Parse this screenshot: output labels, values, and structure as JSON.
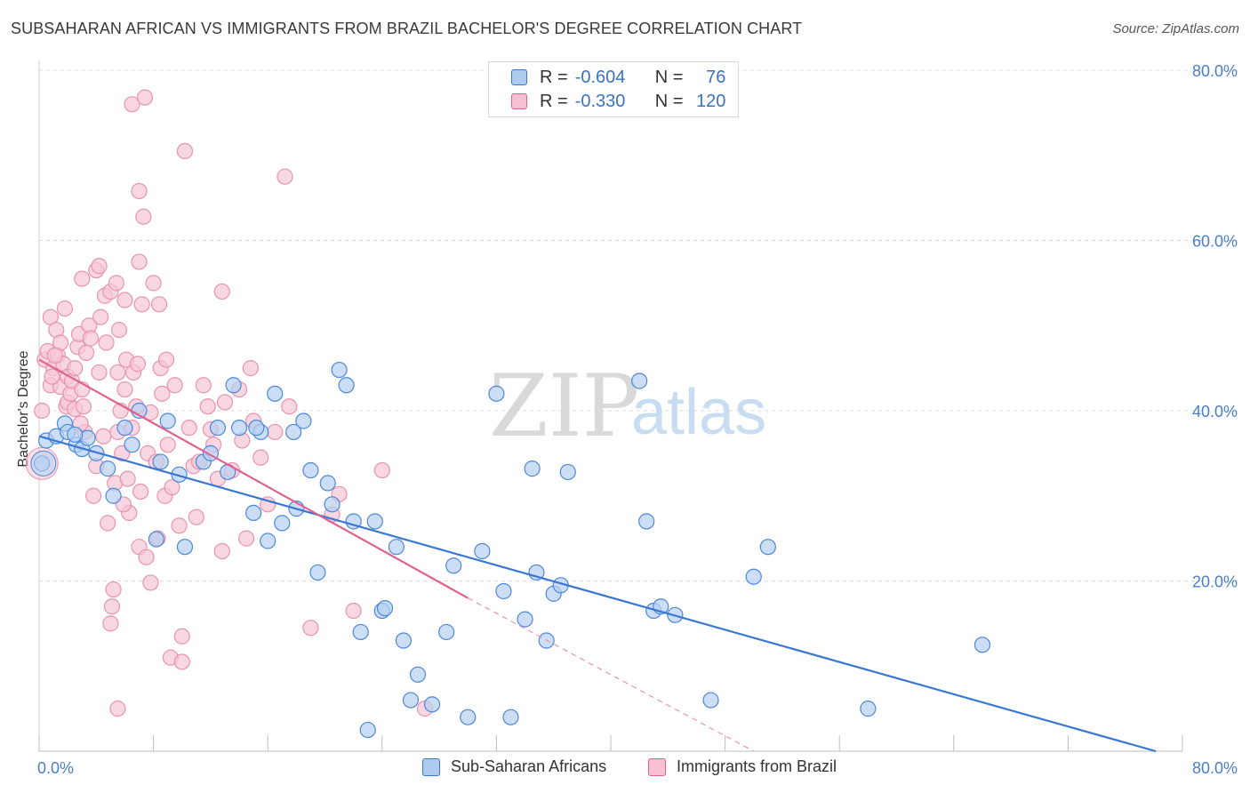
{
  "title": "SUBSAHARAN AFRICAN VS IMMIGRANTS FROM BRAZIL BACHELOR'S DEGREE CORRELATION CHART",
  "source": "Source: ZipAtlas.com",
  "watermark": {
    "zip": "ZIP",
    "atlas": "atlas"
  },
  "legend": {
    "r_label": "R =",
    "n_label": "N =",
    "blue": {
      "r": "-0.604",
      "n": "76"
    },
    "pink": {
      "r": "-0.330",
      "n": "120"
    }
  },
  "colors": {
    "blue": "#3a77d2",
    "pink": "#e0628f",
    "blue_fill": "#aecbef",
    "pink_fill": "#f6bfd2"
  },
  "chart_data": {
    "type": "scatter",
    "title": "SUBSAHARAN AFRICAN VS IMMIGRANTS FROM BRAZIL BACHELOR'S DEGREE CORRELATION CHART",
    "xlabel": "",
    "ylabel": "Bachelor's Degree",
    "xlim": [
      0,
      80
    ],
    "ylim": [
      0,
      80
    ],
    "x_tick_labels": [
      "0.0%",
      "80.0%"
    ],
    "y_tick_labels": [
      "20.0%",
      "40.0%",
      "60.0%",
      "80.0%"
    ],
    "y_ticks": [
      20,
      40,
      60,
      80
    ],
    "grid": true,
    "legend_placement": "top-center",
    "series": [
      {
        "name": "Sub-Saharan Africans",
        "color": "#3a77d2",
        "trend": {
          "x": [
            0,
            80
          ],
          "y": [
            37.0,
            0.0
          ],
          "dashed_from": null
        },
        "points": [
          [
            0.2,
            33.8
          ],
          [
            0.5,
            36.5
          ],
          [
            1.2,
            37.0
          ],
          [
            1.8,
            38.5
          ],
          [
            2.0,
            37.5
          ],
          [
            2.6,
            36.0
          ],
          [
            3.0,
            35.5
          ],
          [
            3.4,
            36.8
          ],
          [
            4.0,
            35.0
          ],
          [
            4.8,
            33.2
          ],
          [
            5.2,
            30.0
          ],
          [
            6.0,
            38.0
          ],
          [
            7.0,
            40.0
          ],
          [
            8.2,
            24.9
          ],
          [
            8.5,
            34.0
          ],
          [
            9.0,
            38.8
          ],
          [
            9.8,
            32.5
          ],
          [
            10.2,
            24.0
          ],
          [
            11.5,
            34.0
          ],
          [
            12.0,
            35.0
          ],
          [
            12.5,
            38.0
          ],
          [
            13.2,
            32.8
          ],
          [
            13.6,
            43.0
          ],
          [
            14.0,
            38.0
          ],
          [
            15.0,
            28.0
          ],
          [
            15.5,
            37.5
          ],
          [
            16.0,
            24.7
          ],
          [
            16.5,
            42.0
          ],
          [
            17.0,
            26.8
          ],
          [
            17.8,
            37.5
          ],
          [
            18.0,
            28.5
          ],
          [
            18.5,
            38.8
          ],
          [
            19.0,
            33.0
          ],
          [
            19.5,
            21.0
          ],
          [
            20.2,
            31.5
          ],
          [
            20.5,
            29.0
          ],
          [
            21.0,
            44.8
          ],
          [
            21.5,
            43.0
          ],
          [
            22.0,
            27.0
          ],
          [
            22.5,
            14.0
          ],
          [
            23.0,
            2.5
          ],
          [
            23.5,
            27.0
          ],
          [
            24.0,
            16.5
          ],
          [
            25.0,
            24.0
          ],
          [
            25.5,
            13.0
          ],
          [
            26.0,
            6.0
          ],
          [
            26.5,
            9.0
          ],
          [
            27.5,
            5.5
          ],
          [
            28.5,
            14.0
          ],
          [
            29.0,
            21.8
          ],
          [
            30.0,
            4.0
          ],
          [
            31.0,
            23.5
          ],
          [
            32.0,
            42.0
          ],
          [
            32.5,
            18.8
          ],
          [
            33.0,
            4.0
          ],
          [
            34.0,
            15.5
          ],
          [
            34.5,
            33.2
          ],
          [
            34.8,
            21.0
          ],
          [
            35.5,
            13.0
          ],
          [
            36.0,
            18.5
          ],
          [
            36.5,
            19.5
          ],
          [
            37.0,
            32.8
          ],
          [
            42.0,
            43.5
          ],
          [
            42.5,
            27.0
          ],
          [
            43.0,
            16.5
          ],
          [
            43.5,
            17.0
          ],
          [
            44.5,
            16.0
          ],
          [
            47.0,
            6.0
          ],
          [
            50.0,
            20.5
          ],
          [
            51.0,
            24.0
          ],
          [
            58.0,
            5.0
          ],
          [
            66.0,
            12.5
          ],
          [
            2.5,
            37.2
          ],
          [
            6.5,
            36.0
          ],
          [
            15.2,
            38.0
          ],
          [
            24.2,
            16.8
          ]
        ]
      },
      {
        "name": "Immigrants from Brazil",
        "color": "#e0628f",
        "trend": {
          "x": [
            0,
            30
          ],
          "y": [
            46.0,
            18.0
          ],
          "dashed_to": [
            50,
            0.0
          ]
        },
        "points": [
          [
            0.2,
            40.0
          ],
          [
            0.4,
            46.0
          ],
          [
            0.6,
            47.0
          ],
          [
            0.8,
            51.0
          ],
          [
            0.8,
            43.0
          ],
          [
            1.0,
            45.0
          ],
          [
            1.2,
            49.5
          ],
          [
            1.3,
            46.5
          ],
          [
            1.5,
            48.0
          ],
          [
            1.5,
            42.8
          ],
          [
            1.7,
            45.5
          ],
          [
            1.8,
            52.0
          ],
          [
            1.9,
            40.5
          ],
          [
            2.0,
            41.0
          ],
          [
            2.0,
            44.0
          ],
          [
            2.2,
            42.0
          ],
          [
            2.3,
            43.5
          ],
          [
            2.5,
            40.2
          ],
          [
            2.5,
            45.0
          ],
          [
            2.7,
            47.5
          ],
          [
            2.8,
            49.0
          ],
          [
            3.0,
            55.5
          ],
          [
            3.0,
            42.5
          ],
          [
            3.2,
            37.5
          ],
          [
            3.3,
            46.8
          ],
          [
            3.5,
            50.0
          ],
          [
            3.6,
            48.5
          ],
          [
            3.8,
            30.0
          ],
          [
            4.0,
            33.5
          ],
          [
            4.0,
            56.5
          ],
          [
            4.2,
            57.0
          ],
          [
            4.2,
            44.5
          ],
          [
            4.5,
            37.0
          ],
          [
            4.6,
            53.5
          ],
          [
            4.7,
            48.0
          ],
          [
            4.8,
            26.8
          ],
          [
            5.0,
            54.0
          ],
          [
            5.0,
            15.0
          ],
          [
            5.1,
            17.0
          ],
          [
            5.2,
            19.0
          ],
          [
            5.3,
            31.5
          ],
          [
            5.4,
            55.0
          ],
          [
            5.5,
            44.5
          ],
          [
            5.5,
            37.5
          ],
          [
            5.6,
            49.5
          ],
          [
            5.7,
            40.0
          ],
          [
            5.8,
            35.0
          ],
          [
            6.0,
            53.0
          ],
          [
            6.0,
            42.5
          ],
          [
            6.1,
            46.0
          ],
          [
            6.2,
            32.0
          ],
          [
            6.3,
            28.0
          ],
          [
            6.5,
            76.0
          ],
          [
            6.5,
            38.0
          ],
          [
            6.6,
            44.5
          ],
          [
            6.8,
            40.5
          ],
          [
            7.0,
            65.8
          ],
          [
            7.0,
            57.5
          ],
          [
            7.0,
            24.0
          ],
          [
            7.2,
            52.5
          ],
          [
            7.3,
            62.8
          ],
          [
            7.4,
            76.8
          ],
          [
            7.5,
            22.8
          ],
          [
            7.6,
            35.0
          ],
          [
            7.8,
            39.8
          ],
          [
            7.8,
            19.8
          ],
          [
            8.0,
            55.0
          ],
          [
            8.2,
            34.0
          ],
          [
            8.3,
            25.0
          ],
          [
            8.4,
            52.5
          ],
          [
            8.5,
            45.0
          ],
          [
            8.6,
            42.0
          ],
          [
            8.8,
            30.0
          ],
          [
            9.0,
            36.0
          ],
          [
            9.2,
            11.0
          ],
          [
            9.5,
            43.0
          ],
          [
            9.8,
            26.5
          ],
          [
            10.0,
            10.5
          ],
          [
            10.0,
            13.5
          ],
          [
            10.2,
            70.5
          ],
          [
            10.5,
            38.0
          ],
          [
            10.8,
            33.5
          ],
          [
            11.0,
            27.5
          ],
          [
            11.2,
            34.0
          ],
          [
            11.5,
            43.0
          ],
          [
            11.8,
            40.5
          ],
          [
            12.2,
            36.0
          ],
          [
            12.5,
            32.0
          ],
          [
            12.8,
            54.0
          ],
          [
            12.8,
            23.5
          ],
          [
            13.0,
            41.0
          ],
          [
            13.5,
            33.0
          ],
          [
            14.0,
            42.5
          ],
          [
            14.2,
            36.5
          ],
          [
            14.5,
            25.0
          ],
          [
            14.8,
            45.0
          ],
          [
            15.0,
            38.8
          ],
          [
            15.5,
            34.5
          ],
          [
            16.0,
            29.0
          ],
          [
            16.5,
            37.5
          ],
          [
            17.2,
            67.5
          ],
          [
            17.5,
            40.5
          ],
          [
            19.0,
            14.5
          ],
          [
            20.5,
            27.8
          ],
          [
            21.0,
            30.2
          ],
          [
            22.0,
            16.5
          ],
          [
            24.0,
            33.0
          ],
          [
            27.0,
            5.0
          ],
          [
            4.3,
            51.0
          ],
          [
            2.9,
            38.5
          ],
          [
            1.1,
            46.5
          ],
          [
            3.1,
            40.5
          ],
          [
            6.9,
            45.5
          ],
          [
            0.9,
            44.0
          ],
          [
            9.3,
            31.0
          ],
          [
            5.9,
            29.0
          ],
          [
            12.0,
            37.8
          ],
          [
            8.9,
            46.0
          ],
          [
            7.1,
            30.5
          ],
          [
            5.5,
            5.0
          ]
        ]
      }
    ]
  }
}
